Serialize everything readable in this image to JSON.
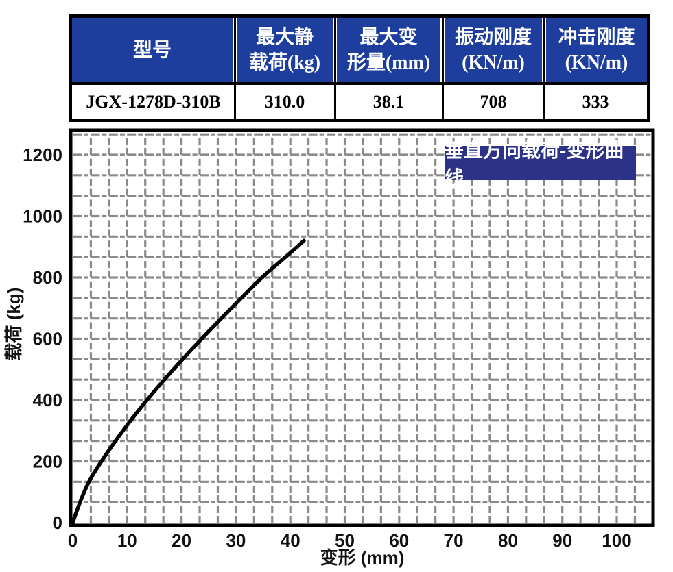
{
  "colors": {
    "table_header_bg": "#1e3e9e",
    "table_header_text": "#ffffff",
    "table_body_text": "#000000",
    "badge_bg": "#2b3287",
    "badge_text": "#ffffff",
    "grid": "#8a8a8a",
    "curve": "#000000",
    "border": "#000000"
  },
  "table": {
    "headers": [
      {
        "line1": "型号",
        "line2": ""
      },
      {
        "line1": "最大静",
        "line2": "载荷(kg)"
      },
      {
        "line1": "最大变",
        "line2": "形量(mm)"
      },
      {
        "line1": "振动刚度",
        "line2": "(KN/m)"
      },
      {
        "line1": "冲击刚度",
        "line2": "(KN/m)"
      }
    ],
    "row": {
      "model": "JGX-1278D-310B",
      "max_static_load_kg": "310.0",
      "max_deformation_mm": "38.1",
      "vibration_stiffness_knm": "708",
      "impact_stiffness_knm": "333"
    }
  },
  "chart_data": {
    "type": "line",
    "title": "垂直方向载荷-变形曲线",
    "xlabel": "变形 (mm)",
    "ylabel": "载荷 (kg)",
    "xlim": [
      0,
      106
    ],
    "ylim": [
      0,
      1270
    ],
    "xticks": [
      0,
      10,
      20,
      30,
      40,
      50,
      60,
      70,
      80,
      90,
      100
    ],
    "yticks": [
      0,
      200,
      400,
      600,
      800,
      1000,
      1200
    ],
    "grid": "dashed, 3 minor divisions per major tick, no solid gridlines",
    "legend_position": "none",
    "series": [
      {
        "name": "垂直方向载荷-变形曲线",
        "color": "#000000",
        "points": [
          [
            0,
            0
          ],
          [
            2,
            105
          ],
          [
            5,
            195
          ],
          [
            10,
            320
          ],
          [
            15,
            430
          ],
          [
            20,
            530
          ],
          [
            25,
            625
          ],
          [
            30,
            715
          ],
          [
            35,
            805
          ],
          [
            40,
            880
          ],
          [
            42.5,
            920
          ]
        ]
      }
    ]
  }
}
